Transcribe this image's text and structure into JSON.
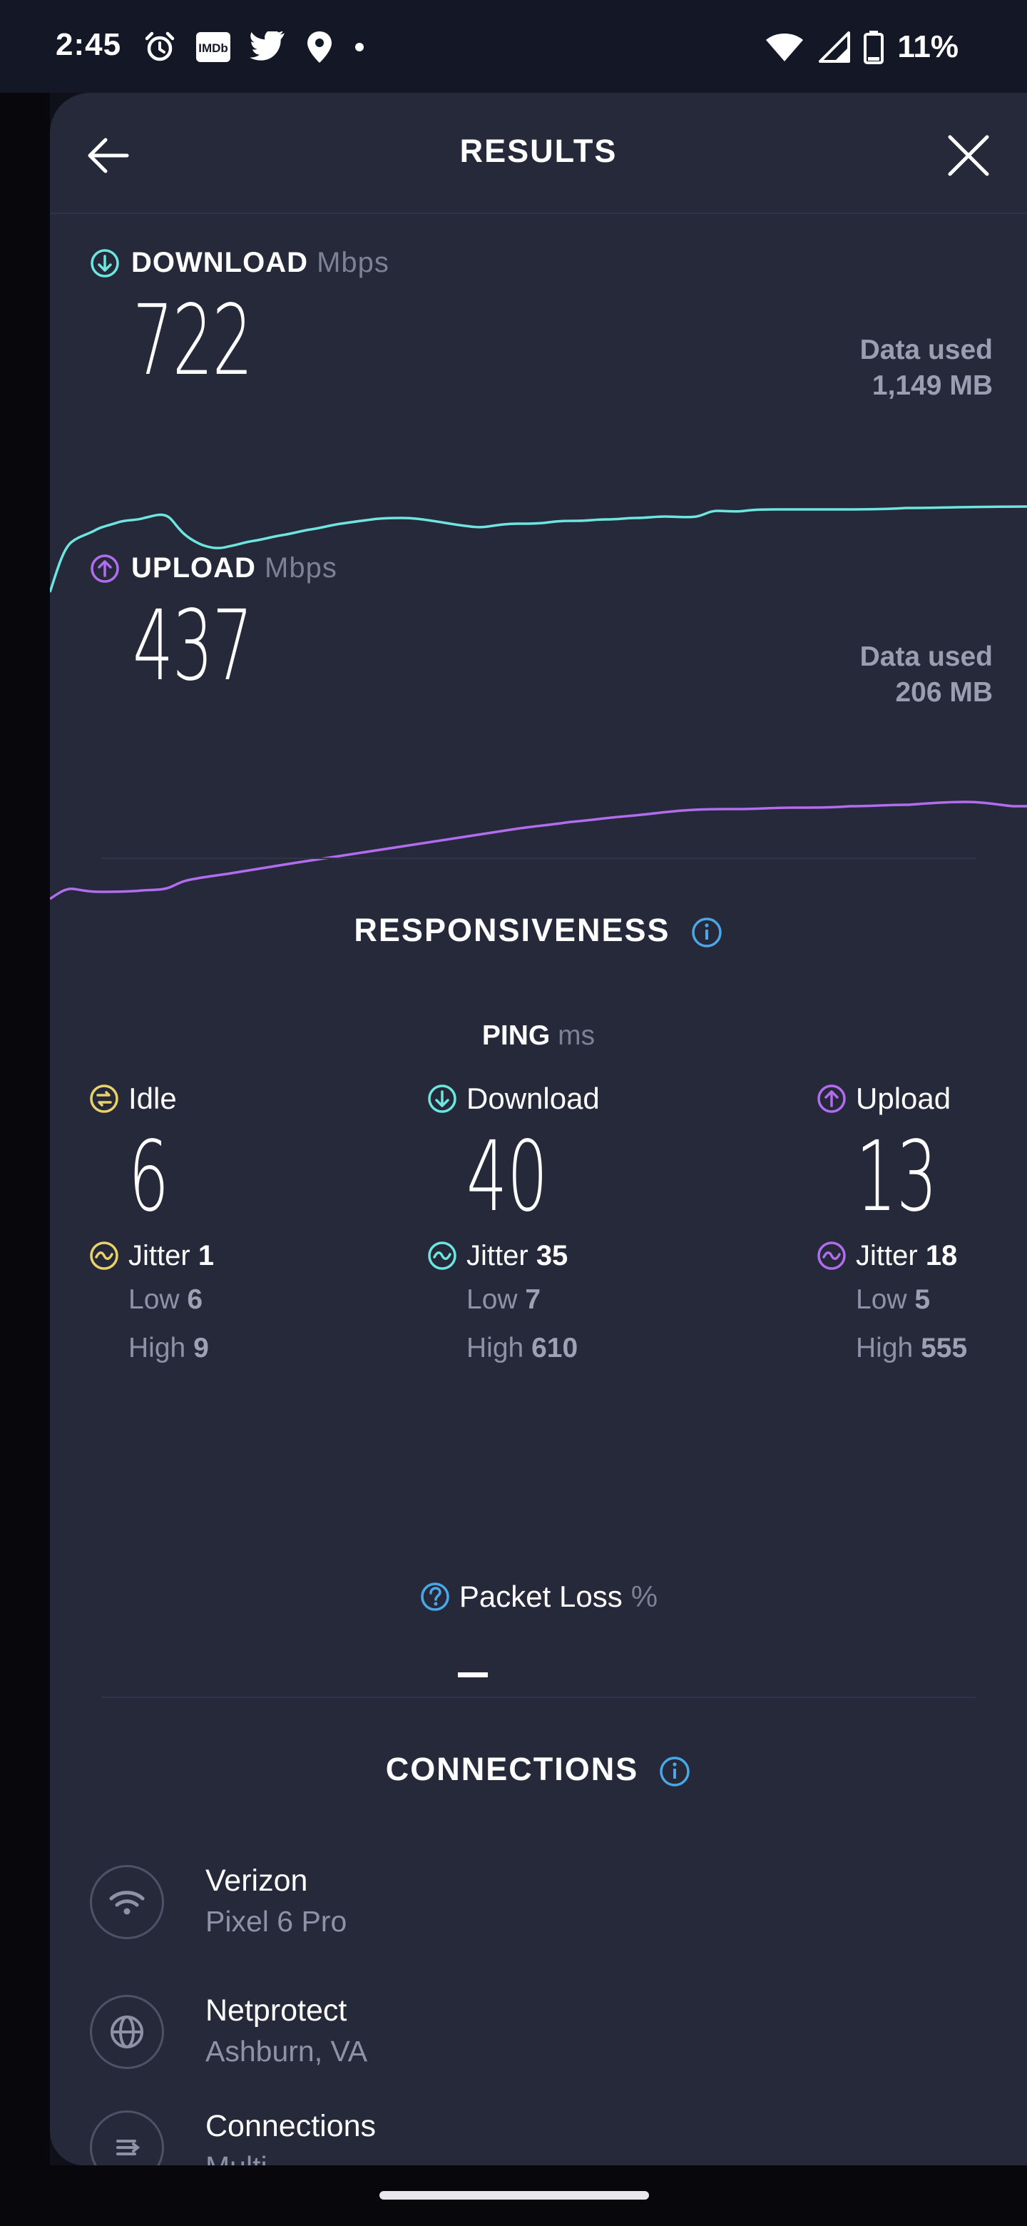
{
  "status_bar": {
    "time": "2:45",
    "battery": "11%",
    "icons": [
      "alarm-icon",
      "imdb-icon",
      "twitter-icon",
      "location-icon",
      "dot-icon",
      "wifi-icon",
      "signal-icon",
      "battery-icon"
    ],
    "imdb_text": "IMDb"
  },
  "header": {
    "title": "RESULTS"
  },
  "download": {
    "label": "DOWNLOAD",
    "unit": "Mbps",
    "value": "722",
    "data_used_label": "Data used",
    "data_used_value": "1,149 MB",
    "color": "#6ee6e0"
  },
  "upload": {
    "label": "UPLOAD",
    "unit": "Mbps",
    "value": "437",
    "data_used_label": "Data used",
    "data_used_value": "206 MB",
    "color": "#b26cf0"
  },
  "responsiveness": {
    "title": "RESPONSIVENESS",
    "ping_label": "PING",
    "ping_unit": "ms",
    "columns": [
      {
        "label": "Idle",
        "value": "6",
        "jitter_label": "Jitter",
        "jitter": "1",
        "low_label": "Low",
        "low": "6",
        "high_label": "High",
        "high": "9",
        "color": "#e8d36a"
      },
      {
        "label": "Download",
        "value": "40",
        "jitter_label": "Jitter",
        "jitter": "35",
        "low_label": "Low",
        "low": "7",
        "high_label": "High",
        "high": "610",
        "color": "#6ee6e0"
      },
      {
        "label": "Upload",
        "value": "13",
        "jitter_label": "Jitter",
        "jitter": "18",
        "low_label": "Low",
        "low": "5",
        "high_label": "High",
        "high": "555",
        "color": "#b26cf0"
      }
    ],
    "packet_loss_label": "Packet Loss",
    "packet_loss_unit": "%"
  },
  "connections": {
    "title": "CONNECTIONS",
    "items": [
      {
        "name": "Verizon",
        "sub": "Pixel 6 Pro",
        "icon": "wifi-icon"
      },
      {
        "name": "Netprotect",
        "sub": "Ashburn, VA",
        "icon": "globe-icon"
      },
      {
        "name": "Connections",
        "sub": "Multi",
        "icon": "multi-connection-icon"
      }
    ]
  },
  "colors": {
    "accent_info": "#4aa8e8",
    "sheet_bg": "#262939"
  }
}
